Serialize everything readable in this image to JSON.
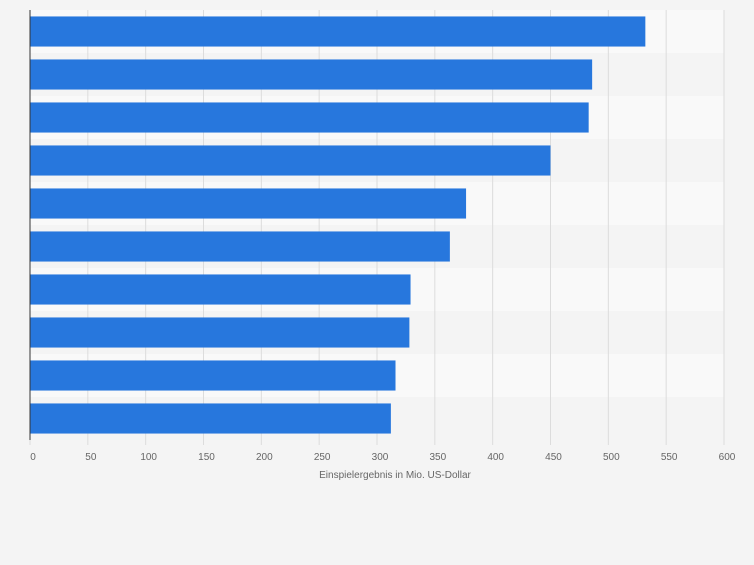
{
  "chart_data": {
    "type": "bar",
    "orientation": "horizontal",
    "title": "",
    "xlabel": "Einspielergebnis in Mio. US-Dollar",
    "ylabel": "",
    "xlim": [
      0,
      600
    ],
    "xticks": [
      "0",
      "50",
      "100",
      "150",
      "200",
      "250",
      "300",
      "350",
      "400",
      "450",
      "500",
      "550",
      "600"
    ],
    "categories": [
      "",
      "",
      "",
      "",
      "",
      "",
      "",
      "",
      "",
      ""
    ],
    "values": [
      532,
      486,
      483,
      450,
      377,
      363,
      329,
      328,
      316,
      312
    ],
    "grid": true,
    "legend": "none"
  },
  "colors": {
    "bar": "#2777dd",
    "background": "#f4f4f4",
    "band_light": "#f9f9f9",
    "band_dark": "#f4f4f4",
    "grid": "#dcdcdc",
    "axis": "#333333",
    "text": "#666666"
  }
}
